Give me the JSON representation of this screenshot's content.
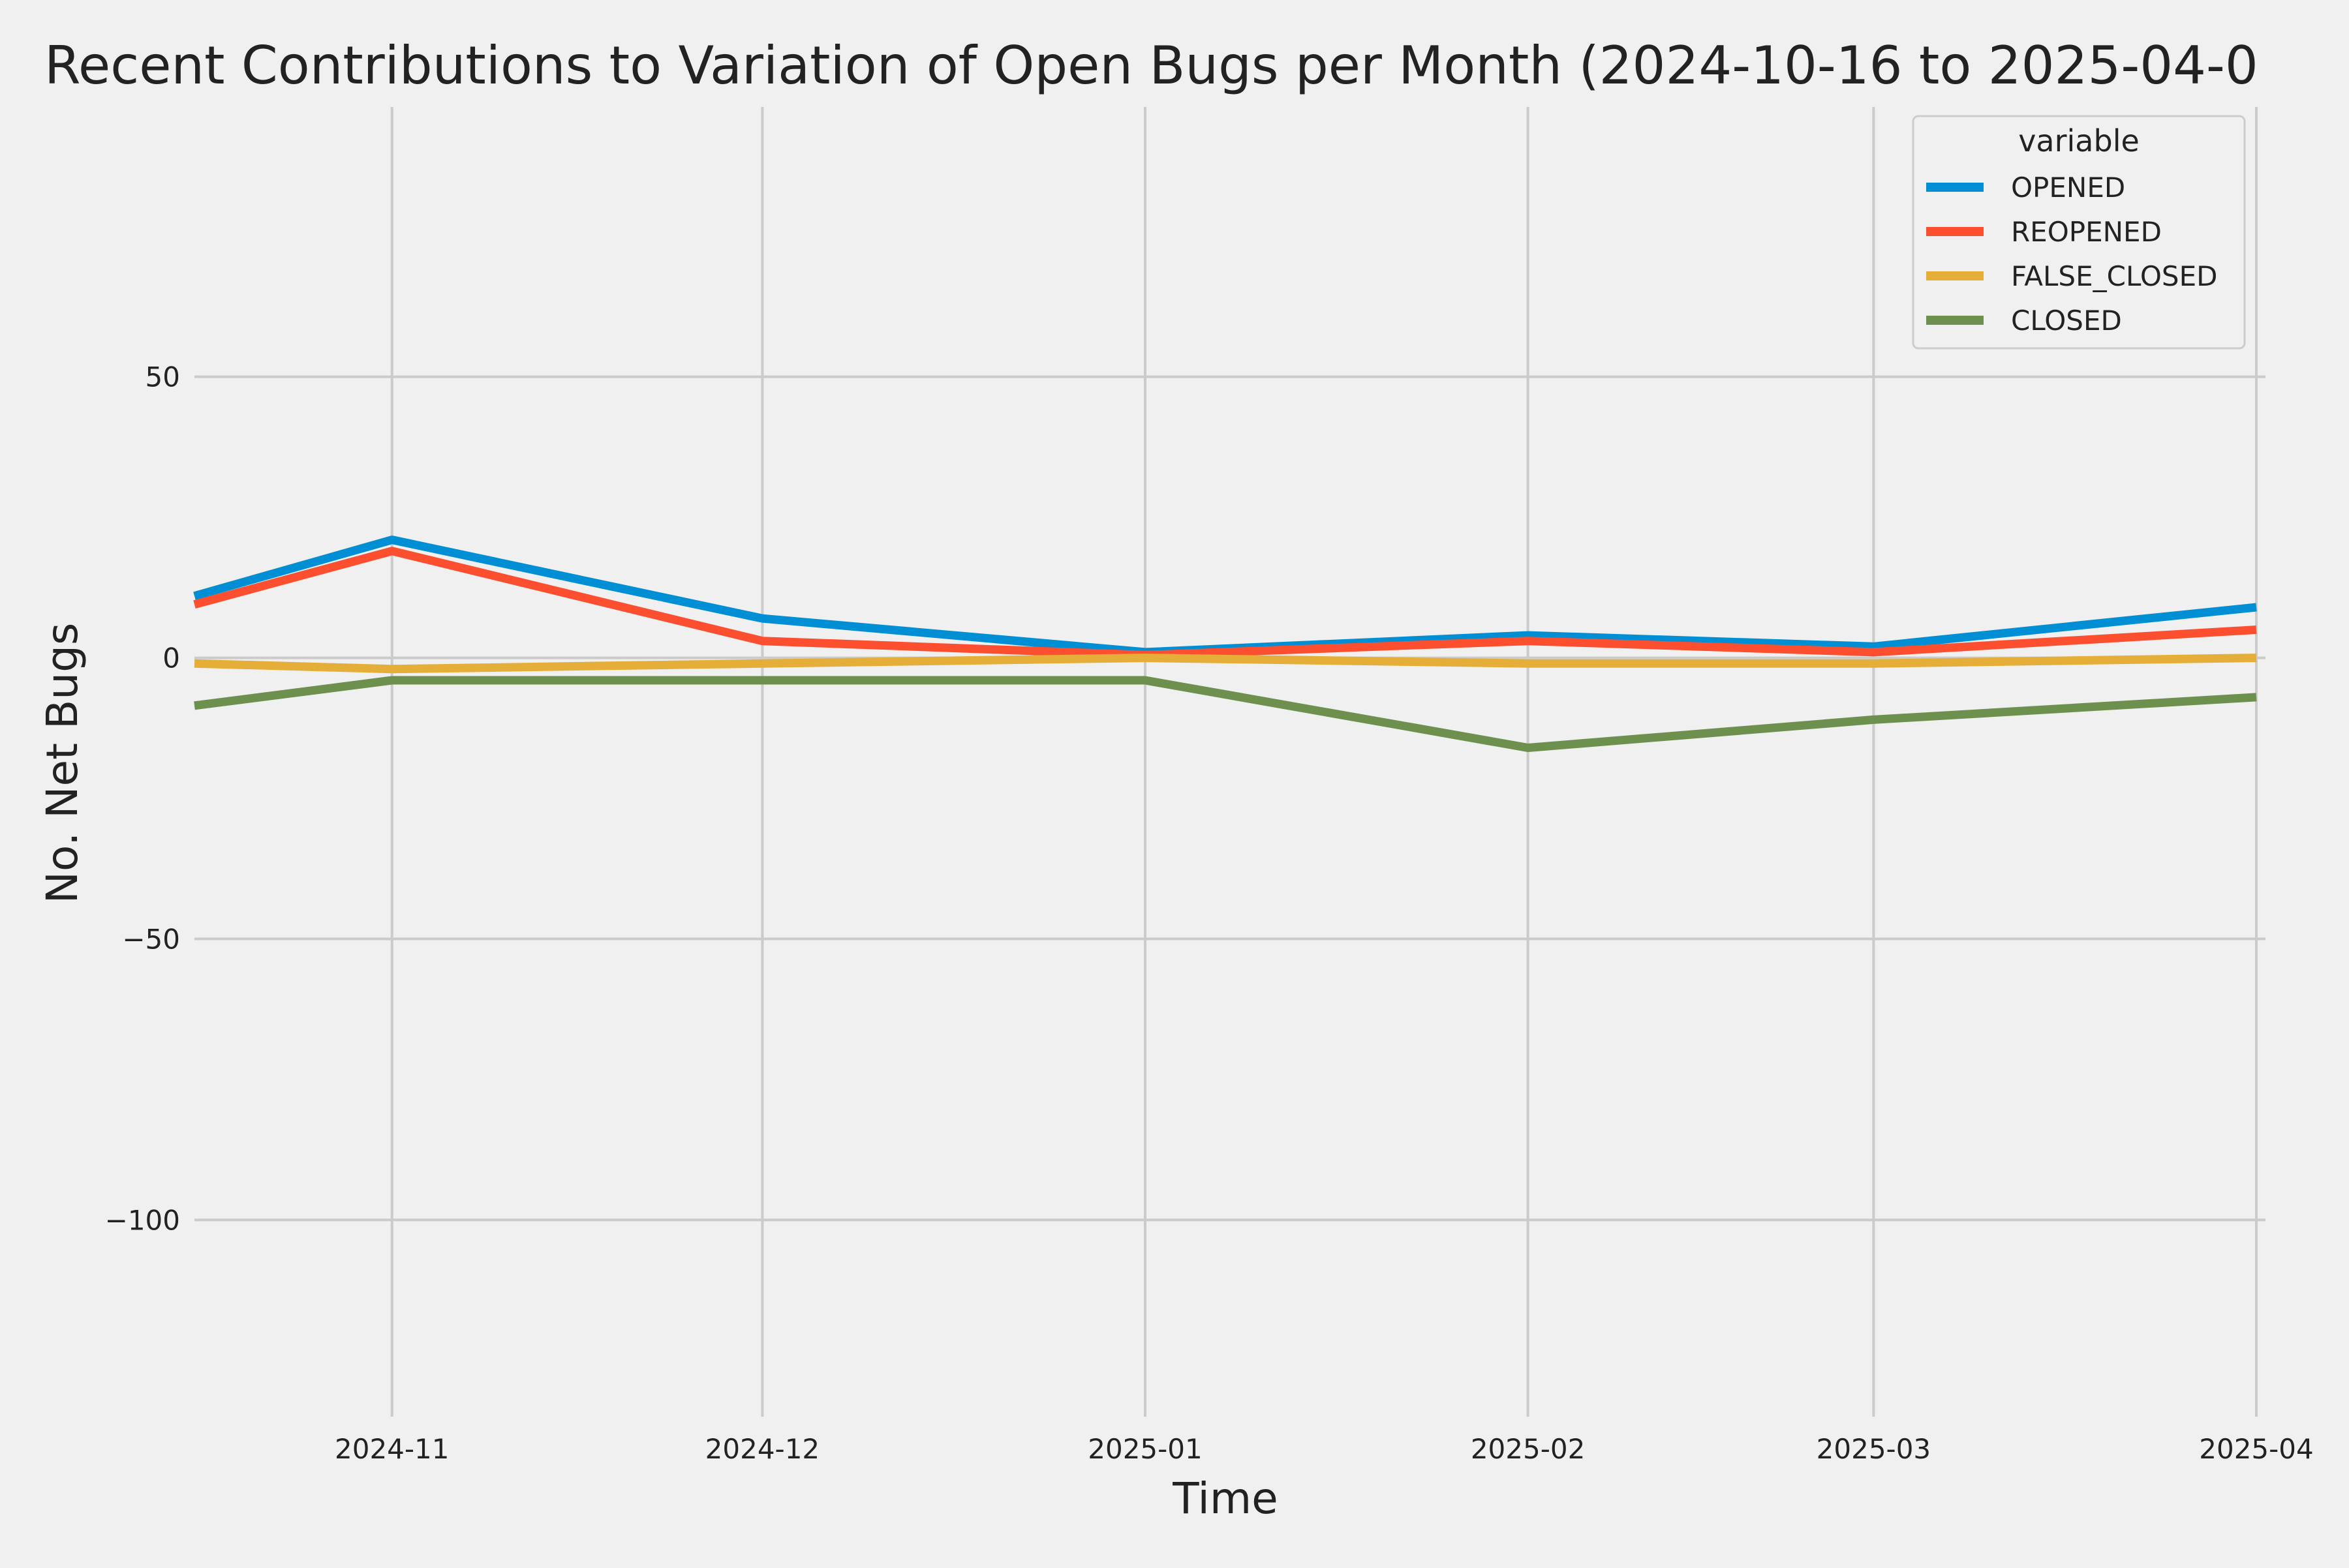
{
  "chart_data": {
    "type": "line",
    "title": "Recent Contributions to Variation of Open Bugs per Month (2024-10-16 to 2025-04-0",
    "xlabel": "Time",
    "ylabel": "No. Net Bugs",
    "x": [
      "2024-10-16",
      "2024-11-01",
      "2024-12-01",
      "2025-01-01",
      "2025-02-01",
      "2025-03-01",
      "2025-04-01"
    ],
    "xlim": [
      "2024-10-16",
      "2025-04-01"
    ],
    "x_ticks": [
      "2024-11-01",
      "2024-12-01",
      "2025-01-01",
      "2025-02-01",
      "2025-03-01",
      "2025-04-01"
    ],
    "x_tick_labels": [
      "2024-11",
      "2024-12",
      "2025-01",
      "2025-02",
      "2025-03",
      "2025-04"
    ],
    "ylim": [
      -135,
      98
    ],
    "y_ticks": [
      50,
      0,
      -50,
      -100
    ],
    "y_tick_labels": [
      "50",
      "0",
      "−50",
      "−100"
    ],
    "grid": true,
    "legend": {
      "title": "variable",
      "position": "top-right"
    },
    "series": [
      {
        "name": "OPENED",
        "color": "#008fd5",
        "values": [
          11,
          21,
          7,
          1,
          4,
          2,
          9
        ]
      },
      {
        "name": "REOPENED",
        "color": "#fc4f30",
        "values": [
          9.5,
          19,
          3,
          0.5,
          3,
          1,
          5
        ]
      },
      {
        "name": "FALSE_CLOSED",
        "color": "#e5ae38",
        "values": [
          -1,
          -2,
          -1,
          0,
          -1,
          -1,
          0
        ]
      },
      {
        "name": "CLOSED",
        "color": "#6d904f",
        "values": [
          -8.5,
          -4,
          -4,
          -4,
          -16,
          -11,
          -7
        ]
      }
    ]
  }
}
